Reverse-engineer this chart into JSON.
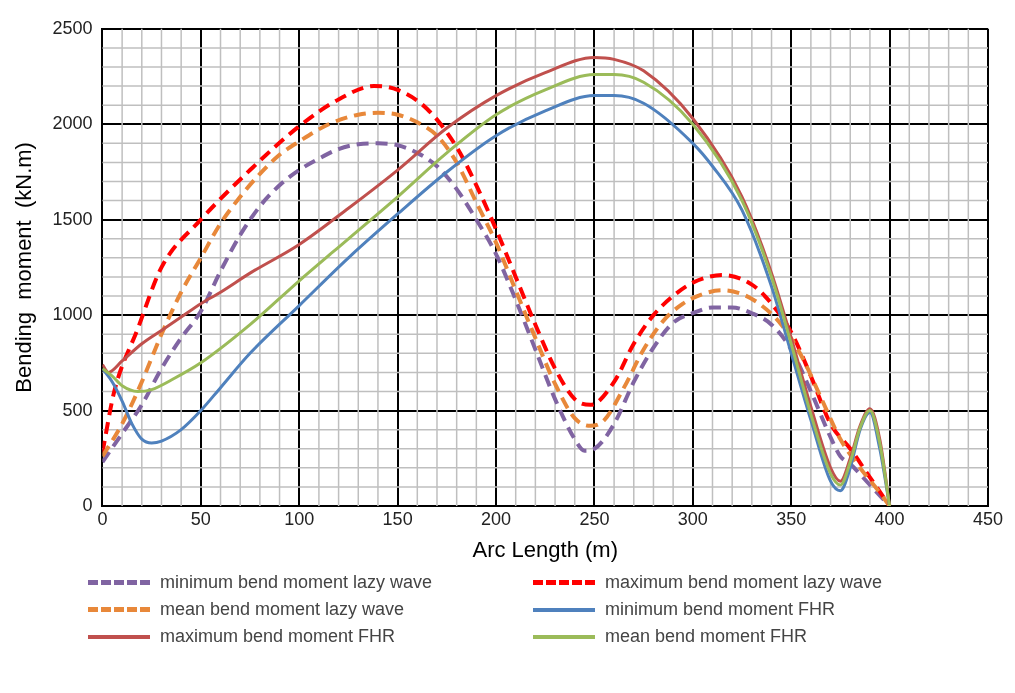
{
  "chart_data": {
    "type": "line",
    "xlabel": "Arc Length (m)",
    "ylabel": "Bending  moment  (kN.m)",
    "xlim": [
      0,
      450
    ],
    "xticks": [
      0,
      50,
      100,
      150,
      200,
      250,
      300,
      350,
      400,
      450
    ],
    "ylim": [
      0,
      2500
    ],
    "yticks": [
      0,
      500,
      1000,
      1500,
      2000,
      2500
    ],
    "grid": true,
    "legend": "bottom",
    "marker": "none",
    "series": [
      {
        "name": "minimum bend moment lazy wave",
        "color": "#8064a2",
        "line_style": "dashed",
        "x": [
          0,
          10,
          20,
          30,
          40,
          50,
          60,
          70,
          80,
          90,
          100,
          110,
          120,
          130,
          140,
          150,
          160,
          170,
          180,
          190,
          200,
          210,
          220,
          230,
          240,
          245,
          250,
          260,
          270,
          280,
          290,
          300,
          310,
          320,
          330,
          340,
          350,
          360,
          370,
          375,
          380,
          390,
          400
        ],
        "values": [
          230,
          380,
          530,
          720,
          880,
          1020,
          1230,
          1420,
          1570,
          1680,
          1760,
          1820,
          1870,
          1895,
          1900,
          1890,
          1850,
          1780,
          1660,
          1500,
          1320,
          1080,
          820,
          560,
          350,
          290,
          300,
          430,
          650,
          830,
          960,
          1010,
          1040,
          1040,
          1010,
          950,
          820,
          600,
          360,
          260,
          220,
          110,
          0
        ]
      },
      {
        "name": "maximum bend moment lazy wave",
        "color": "#ff0000",
        "line_style": "dashed",
        "x": [
          0,
          6,
          18,
          30,
          50,
          75,
          100,
          120,
          138,
          150,
          165,
          180,
          190,
          200,
          210,
          220,
          230,
          240,
          248,
          260,
          270,
          280,
          290,
          300,
          315,
          330,
          340,
          350,
          360,
          370,
          380,
          390,
          400
        ],
        "values": [
          280,
          600,
          930,
          1250,
          1500,
          1760,
          1990,
          2130,
          2200,
          2180,
          2080,
          1880,
          1680,
          1450,
          1200,
          950,
          720,
          560,
          530,
          650,
          850,
          1000,
          1100,
          1170,
          1210,
          1160,
          1060,
          910,
          680,
          430,
          300,
          150,
          0
        ]
      },
      {
        "name": "mean bend moment lazy wave",
        "color": "#e8883a",
        "line_style": "dashed",
        "x": [
          0,
          10,
          20,
          30,
          40,
          50,
          60,
          70,
          80,
          90,
          100,
          115,
          130,
          140,
          150,
          160,
          170,
          180,
          190,
          200,
          210,
          220,
          230,
          240,
          248,
          255,
          265,
          275,
          285,
          295,
          305,
          315,
          325,
          335,
          345,
          355,
          365,
          375,
          385,
          395,
          400
        ],
        "values": [
          260,
          430,
          650,
          900,
          1120,
          1300,
          1480,
          1620,
          1740,
          1840,
          1910,
          2000,
          2050,
          2060,
          2050,
          2010,
          1940,
          1800,
          1590,
          1380,
          1130,
          880,
          640,
          460,
          420,
          450,
          620,
          820,
          970,
          1060,
          1110,
          1130,
          1110,
          1050,
          950,
          790,
          570,
          350,
          200,
          70,
          0
        ]
      },
      {
        "name": "minimum bend moment FHR",
        "color": "#4f81bd",
        "line_style": "solid",
        "x": [
          0,
          5,
          10,
          15,
          20,
          25,
          30,
          40,
          50,
          60,
          75,
          100,
          125,
          150,
          175,
          200,
          225,
          250,
          260,
          275,
          300,
          310,
          325,
          340,
          350,
          360,
          370,
          375,
          380,
          385,
          390,
          395,
          400
        ],
        "values": [
          720,
          650,
          550,
          430,
          350,
          330,
          340,
          400,
          500,
          620,
          800,
          1050,
          1300,
          1530,
          1750,
          1940,
          2070,
          2150,
          2150,
          2110,
          1900,
          1780,
          1550,
          1150,
          800,
          450,
          130,
          80,
          200,
          400,
          490,
          300,
          0
        ]
      },
      {
        "name": "maximum bend moment FHR",
        "color": "#c0504d",
        "line_style": "solid",
        "x": [
          0,
          3,
          10,
          20,
          30,
          40,
          50,
          60,
          75,
          100,
          125,
          150,
          175,
          200,
          225,
          250,
          260,
          275,
          300,
          325,
          340,
          350,
          360,
          370,
          375,
          380,
          385,
          390,
          395,
          400
        ],
        "values": [
          740,
          700,
          760,
          850,
          920,
          990,
          1060,
          1120,
          1220,
          1370,
          1560,
          1760,
          1980,
          2150,
          2270,
          2350,
          2340,
          2280,
          2030,
          1620,
          1220,
          880,
          520,
          200,
          130,
          250,
          420,
          510,
          350,
          0
        ]
      },
      {
        "name": "mean bend moment FHR",
        "color": "#9bbb59",
        "line_style": "solid",
        "x": [
          0,
          5,
          10,
          18,
          25,
          35,
          50,
          75,
          100,
          125,
          150,
          175,
          200,
          225,
          250,
          260,
          275,
          300,
          325,
          340,
          350,
          360,
          370,
          375,
          380,
          385,
          390,
          395,
          400
        ],
        "values": [
          720,
          680,
          630,
          600,
          610,
          660,
          750,
          950,
          1180,
          1400,
          1620,
          1850,
          2050,
          2180,
          2260,
          2260,
          2220,
          2000,
          1600,
          1200,
          850,
          480,
          170,
          110,
          230,
          410,
          500,
          330,
          0
        ]
      }
    ]
  }
}
